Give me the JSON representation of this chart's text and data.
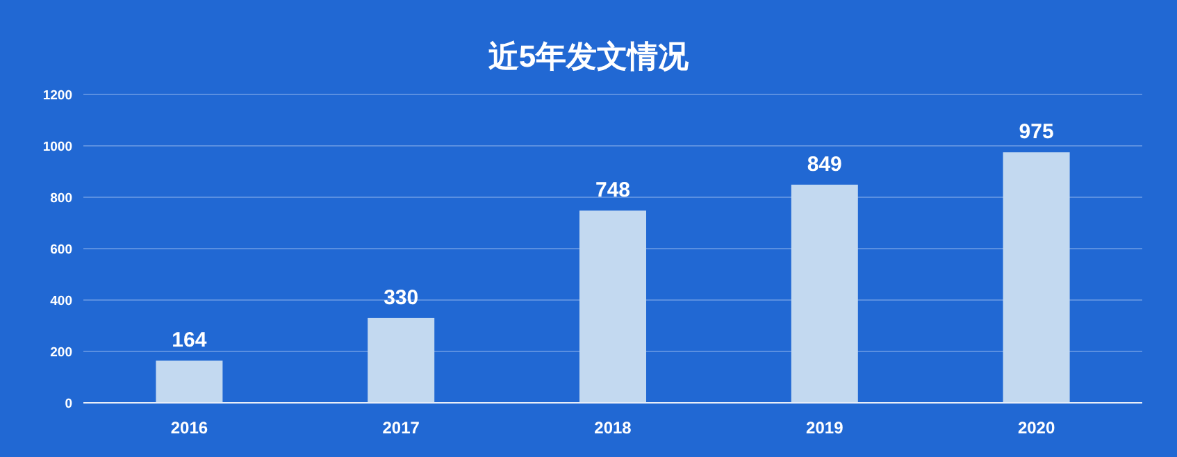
{
  "chart_data": {
    "type": "bar",
    "title": "近5年发文情况",
    "categories": [
      "2016",
      "2017",
      "2018",
      "2019",
      "2020"
    ],
    "values": [
      164,
      330,
      748,
      849,
      975
    ],
    "color": "#c3d9f0",
    "ylim": [
      0,
      1200
    ],
    "yticks": [
      0,
      200,
      400,
      600,
      800,
      1000,
      1200
    ],
    "grid": "y",
    "data_labels": true
  }
}
